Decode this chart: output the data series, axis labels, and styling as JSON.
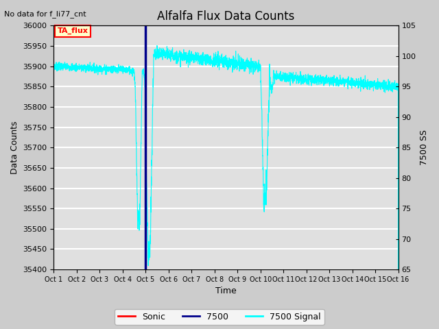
{
  "title": "Alfalfa Flux Data Counts",
  "top_left_text": "No data for f_li77_cnt",
  "xlabel": "Time",
  "ylabel_left": "Data Counts",
  "ylabel_right": "7500 SS",
  "xlim": [
    0,
    15
  ],
  "ylim_left": [
    35400,
    36000
  ],
  "ylim_right": [
    65,
    105
  ],
  "xtick_labels": [
    "Oct 1",
    "Oct 2",
    "Oct 3",
    "Oct 4",
    "Oct 5",
    "Oct 6",
    "Oct 7",
    "Oct 8",
    "Oct 9",
    "Oct 10",
    "Oct 11",
    "Oct 12",
    "Oct 13",
    "Oct 14",
    "Oct 15",
    "Oct 16"
  ],
  "ytick_left": [
    35400,
    35450,
    35500,
    35550,
    35600,
    35650,
    35700,
    35750,
    35800,
    35850,
    35900,
    35950,
    36000
  ],
  "ytick_right": [
    65,
    70,
    75,
    80,
    85,
    90,
    95,
    100,
    105
  ],
  "bg_color": "#cccccc",
  "plot_bg_color": "#e0e0e0",
  "legend_entries": [
    "Sonic",
    "7500",
    "7500 Signal"
  ],
  "annotation_box_text": "TA_flux",
  "annotation_box_bg": "#ffffcc",
  "annotation_box_border": "red",
  "annotation_box_text_color": "red",
  "hline_y": 36000,
  "hline_color": "#00008b",
  "vline_x": 4.0,
  "vline_color": "#00008b",
  "signal_color": "cyan",
  "grid_color": "#c8c8c8"
}
